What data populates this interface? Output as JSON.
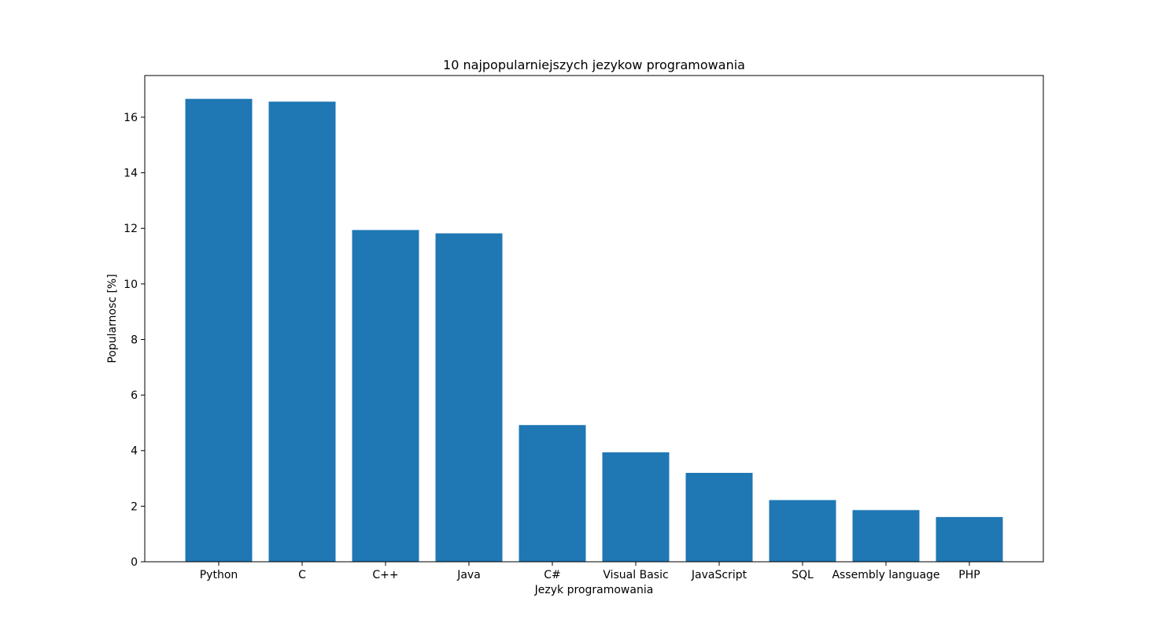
{
  "chart_data": {
    "type": "bar",
    "title": "10 najpopularniejszych jezykow programowania",
    "xlabel": "Jezyk programowania",
    "ylabel": "Popularnosc [%]",
    "categories": [
      "Python",
      "C",
      "C++",
      "Java",
      "C#",
      "Visual Basic",
      "JavaScript",
      "SQL",
      "Assembly language",
      "PHP"
    ],
    "values": [
      16.66,
      16.56,
      11.94,
      11.82,
      4.92,
      3.94,
      3.2,
      2.22,
      1.86,
      1.61
    ],
    "yticks": [
      "0",
      "2",
      "4",
      "6",
      "8",
      "10",
      "12",
      "14",
      "16"
    ],
    "ylim": [
      0,
      17.5
    ],
    "grid": false,
    "bar_color": "#1f77b4"
  }
}
